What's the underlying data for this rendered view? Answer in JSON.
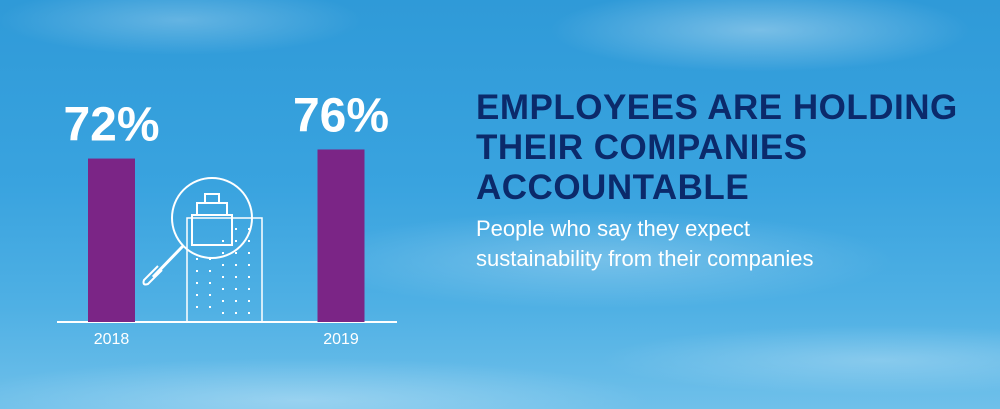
{
  "chart_data": {
    "type": "bar",
    "title": "EMPLOYEES ARE HOLDING THEIR COMPANIES ACCOUNTABLE",
    "subtitle": "People who say they expect sustainability from their companies",
    "categories": [
      "2018",
      "2019"
    ],
    "values": [
      72,
      76
    ],
    "value_labels": [
      "72%",
      "76%"
    ],
    "color": "#7b2586"
  }
}
